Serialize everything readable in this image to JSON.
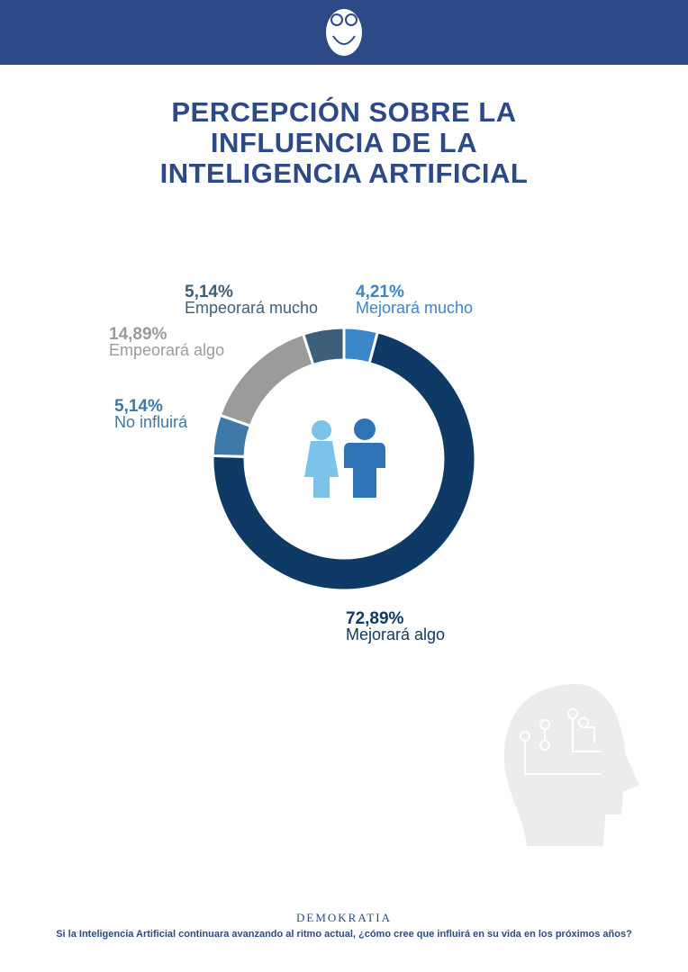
{
  "chart_data": {
    "type": "donut",
    "title": "PERCEPCIÓN SOBRE LA INFLUENCIA DE LA INTELIGENCIA ARTIFICIAL",
    "categories": [
      "Mejorará mucho",
      "Mejorará algo",
      "No influirá",
      "Empeorará algo",
      "Empeorará mucho"
    ],
    "values": [
      4.21,
      72.89,
      5.14,
      14.89,
      5.14
    ],
    "value_labels": [
      "4,21%",
      "72,89%",
      "5,14%",
      "14,89%",
      "5,14%"
    ],
    "colors": [
      "#3a86c8",
      "#0f3a66",
      "#3d78a8",
      "#9b9b9b",
      "#3e5f7a"
    ]
  },
  "footer": {
    "brand": "DEMOKRATIA",
    "question": "Si la Inteligencia Artificial continuara avanzando al ritmo actual, ¿cómo cree que influirá en su vida en los próximos años?"
  }
}
